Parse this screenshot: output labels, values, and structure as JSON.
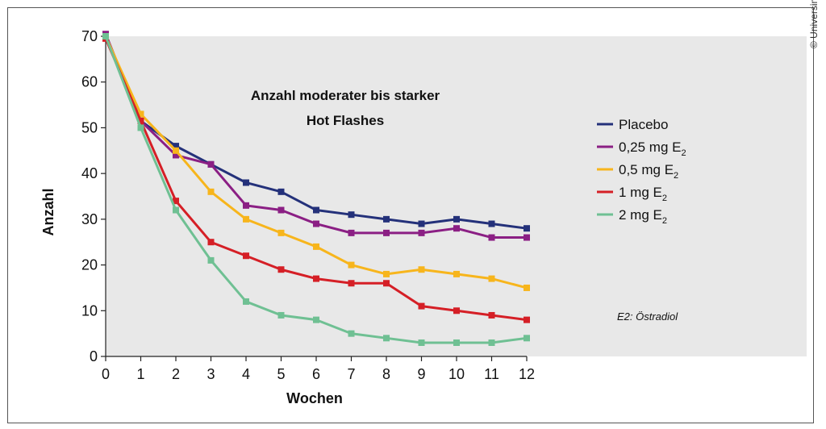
{
  "copyright": "© Universimed",
  "chart_data": {
    "type": "line",
    "title_lines": [
      "Anzahl moderater bis starker",
      "Hot Flashes"
    ],
    "xlabel": "Wochen",
    "ylabel": "Anzahl",
    "x": [
      0,
      1,
      2,
      3,
      4,
      5,
      6,
      7,
      8,
      9,
      10,
      11,
      12
    ],
    "xlim": [
      0,
      12
    ],
    "ylim": [
      0,
      70
    ],
    "yticks": [
      0,
      10,
      20,
      30,
      40,
      50,
      60,
      70
    ],
    "grid": false,
    "background": "#e8e8e8",
    "legend_position": "right",
    "series": [
      {
        "name": "Placebo",
        "name_main": "Placebo",
        "name_sub": "",
        "color": "#24317a",
        "values": [
          70,
          51.5,
          46,
          42,
          38,
          36,
          32,
          31,
          30,
          29,
          30,
          29,
          28
        ]
      },
      {
        "name": "0,25 mg E2",
        "name_main": "0,25 mg E",
        "name_sub": "2",
        "color": "#8b1f84",
        "values": [
          70.5,
          51.5,
          44,
          42,
          33,
          32,
          29,
          27,
          27,
          27,
          28,
          26,
          26
        ]
      },
      {
        "name": "0,5 mg E2",
        "name_main": "0,5 mg E",
        "name_sub": "2",
        "color": "#f7b51c",
        "values": [
          70,
          53,
          45,
          36,
          30,
          27,
          24,
          20,
          18,
          19,
          18,
          17,
          15
        ]
      },
      {
        "name": "1 mg E2",
        "name_main": "1 mg E",
        "name_sub": "2",
        "color": "#d51f26",
        "values": [
          69.5,
          51.5,
          34,
          25,
          22,
          19,
          17,
          16,
          16,
          11,
          10,
          9,
          8
        ]
      },
      {
        "name": "2 mg E2",
        "name_main": "2 mg E",
        "name_sub": "2",
        "color": "#6fc093",
        "values": [
          70,
          50,
          32,
          21,
          12,
          9,
          8,
          5,
          4,
          3,
          3,
          3,
          4
        ]
      }
    ],
    "annotation": "E2: Östradiol"
  }
}
